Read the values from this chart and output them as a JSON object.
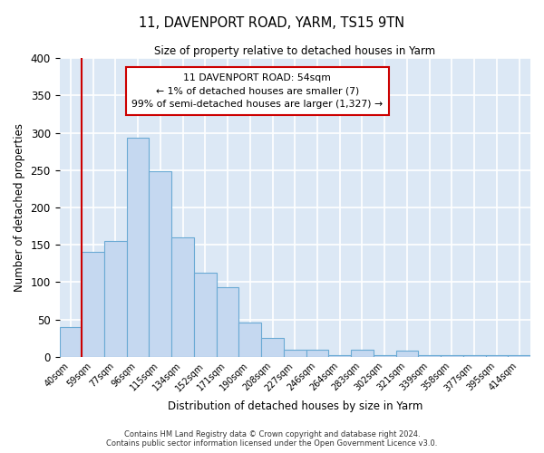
{
  "title": "11, DAVENPORT ROAD, YARM, TS15 9TN",
  "subtitle": "Size of property relative to detached houses in Yarm",
  "xlabel": "Distribution of detached houses by size in Yarm",
  "ylabel": "Number of detached properties",
  "bar_labels": [
    "40sqm",
    "59sqm",
    "77sqm",
    "96sqm",
    "115sqm",
    "134sqm",
    "152sqm",
    "171sqm",
    "190sqm",
    "208sqm",
    "227sqm",
    "246sqm",
    "264sqm",
    "283sqm",
    "302sqm",
    "321sqm",
    "339sqm",
    "358sqm",
    "377sqm",
    "395sqm",
    "414sqm"
  ],
  "bar_values": [
    40,
    140,
    155,
    293,
    248,
    160,
    113,
    93,
    46,
    25,
    10,
    10,
    2,
    10,
    2,
    8,
    2,
    2,
    2,
    2,
    2
  ],
  "bar_color": "#c5d8f0",
  "bar_edge_color": "#6aaad4",
  "bg_color": "#dce8f5",
  "grid_color": "#ffffff",
  "vline_color": "#cc0000",
  "vline_x_bar_index": 0.5,
  "annotation_lines": [
    "11 DAVENPORT ROAD: 54sqm",
    "← 1% of detached houses are smaller (7)",
    "99% of semi-detached houses are larger (1,327) →"
  ],
  "annotation_box_color": "#ffffff",
  "annotation_box_edge_color": "#cc0000",
  "ylim": [
    0,
    400
  ],
  "yticks": [
    0,
    50,
    100,
    150,
    200,
    250,
    300,
    350,
    400
  ],
  "footer_line1": "Contains HM Land Registry data © Crown copyright and database right 2024.",
  "footer_line2": "Contains public sector information licensed under the Open Government Licence v3.0."
}
